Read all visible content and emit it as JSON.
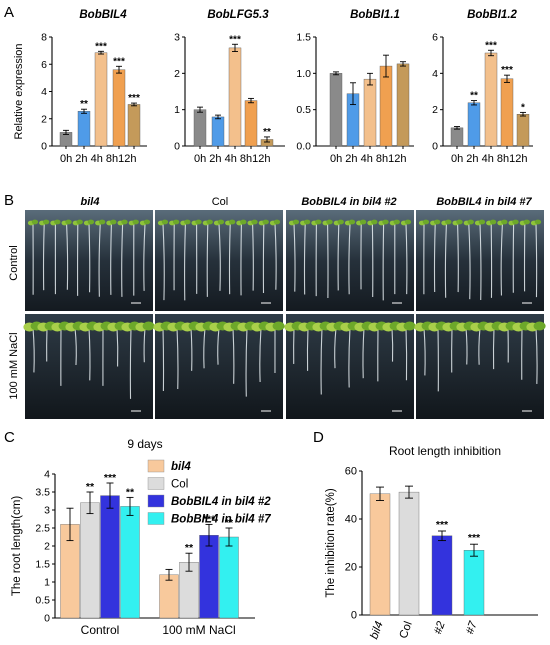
{
  "panel_labels": {
    "A": "A",
    "B": "B",
    "C": "C",
    "D": "D"
  },
  "panel_b": {
    "column_titles": [
      "bil4",
      "Col",
      "BobBIL4 in bil4 #2",
      "BobBIL4 in bil4 #7"
    ],
    "row_labels": [
      "Control",
      "100 mM NaCl"
    ]
  },
  "chart_data": [
    {
      "type": "bar",
      "panel": "A",
      "title": "BobBIL4",
      "ylabel": "Relative expression",
      "categories": [
        "0h",
        "2h",
        "4h",
        "8h",
        "12h"
      ],
      "values": [
        1.0,
        2.55,
        6.85,
        5.6,
        3.05
      ],
      "errors": [
        0.15,
        0.15,
        0.1,
        0.25,
        0.1
      ],
      "significance": [
        "",
        "**",
        "***",
        "***",
        "***"
      ],
      "colors": [
        "#8a8a8a",
        "#4f9be8",
        "#f3c08c",
        "#f0a050",
        "#c49a5a"
      ],
      "ylim": [
        0,
        8
      ],
      "yticks": [
        "0",
        "2",
        "4",
        "6",
        "8"
      ]
    },
    {
      "type": "bar",
      "panel": "A",
      "title": "BobLFG5.3",
      "categories": [
        "0h",
        "2h",
        "4h",
        "8h",
        "12h"
      ],
      "values": [
        1.0,
        0.8,
        2.7,
        1.25,
        0.18
      ],
      "errors": [
        0.07,
        0.05,
        0.1,
        0.06,
        0.07
      ],
      "significance": [
        "",
        "",
        "***",
        "",
        "**"
      ],
      "colors": [
        "#8a8a8a",
        "#4f9be8",
        "#f3c08c",
        "#f0a050",
        "#c49a5a"
      ],
      "ylim": [
        0,
        3
      ],
      "yticks": [
        "0",
        "1",
        "2",
        "3"
      ]
    },
    {
      "type": "bar",
      "panel": "A",
      "title": "BobBI1.1",
      "categories": [
        "0h",
        "2h",
        "4h",
        "8h",
        "12h"
      ],
      "values": [
        1.0,
        0.72,
        0.92,
        1.1,
        1.13
      ],
      "errors": [
        0.02,
        0.15,
        0.08,
        0.15,
        0.03
      ],
      "significance": [
        "",
        "",
        "",
        "",
        ""
      ],
      "colors": [
        "#8a8a8a",
        "#4f9be8",
        "#f3c08c",
        "#f0a050",
        "#c49a5a"
      ],
      "ylim": [
        0,
        1.5
      ],
      "yticks": [
        "0.0",
        "0.5",
        "1.0",
        "1.5"
      ]
    },
    {
      "type": "bar",
      "panel": "A",
      "title": "BobBI1.2",
      "categories": [
        "0h",
        "2h",
        "4h",
        "8h",
        "12h"
      ],
      "values": [
        1.0,
        2.38,
        5.12,
        3.7,
        1.75
      ],
      "errors": [
        0.07,
        0.12,
        0.15,
        0.2,
        0.1
      ],
      "significance": [
        "",
        "**",
        "***",
        "***",
        "*"
      ],
      "colors": [
        "#8a8a8a",
        "#4f9be8",
        "#f3c08c",
        "#f0a050",
        "#c49a5a"
      ],
      "ylim": [
        0,
        6
      ],
      "yticks": [
        "0",
        "2",
        "4",
        "6"
      ]
    },
    {
      "type": "bar",
      "panel": "C",
      "title": "9 days",
      "ylabel": "The root length(cm)",
      "categories": [
        "Control",
        "100 mM NaCl"
      ],
      "ylim": [
        0,
        4
      ],
      "yticks": [
        "0",
        "0.5",
        "1",
        "1.5",
        "2",
        "2.5",
        "3",
        "3.5",
        "4"
      ],
      "legend_position": "top-right",
      "series": [
        {
          "name": "bil4",
          "color": "#f8c99c",
          "values": [
            2.6,
            1.2
          ],
          "errors": [
            0.45,
            0.15
          ],
          "significance": [
            "",
            ""
          ]
        },
        {
          "name": "Col",
          "color": "#dcdcdc",
          "values": [
            3.2,
            1.55
          ],
          "errors": [
            0.3,
            0.25
          ],
          "significance": [
            "**",
            "**"
          ]
        },
        {
          "name": "BobBIL4 in bil4 #2",
          "color": "#3333dd",
          "values": [
            3.4,
            2.3
          ],
          "errors": [
            0.35,
            0.3
          ],
          "significance": [
            "***",
            "***"
          ]
        },
        {
          "name": "BobBIL4 in bil4 #7",
          "color": "#33f0f0",
          "values": [
            3.1,
            2.25
          ],
          "errors": [
            0.25,
            0.25
          ],
          "significance": [
            "**",
            "**"
          ]
        }
      ]
    },
    {
      "type": "bar",
      "panel": "D",
      "title": "Root length inhibition",
      "ylabel": "The inhibition rate(%)",
      "categories": [
        "bil4",
        "Col",
        "#2",
        "#7"
      ],
      "values": [
        50.5,
        51.2,
        33,
        27
      ],
      "errors": [
        2.8,
        2.5,
        2.0,
        2.5
      ],
      "significance": [
        "",
        "",
        "***",
        "***"
      ],
      "colors": [
        "#f8c99c",
        "#dcdcdc",
        "#3333dd",
        "#33f0f0"
      ],
      "ylim": [
        0,
        60
      ],
      "yticks": [
        "0",
        "20",
        "40",
        "60"
      ]
    }
  ]
}
